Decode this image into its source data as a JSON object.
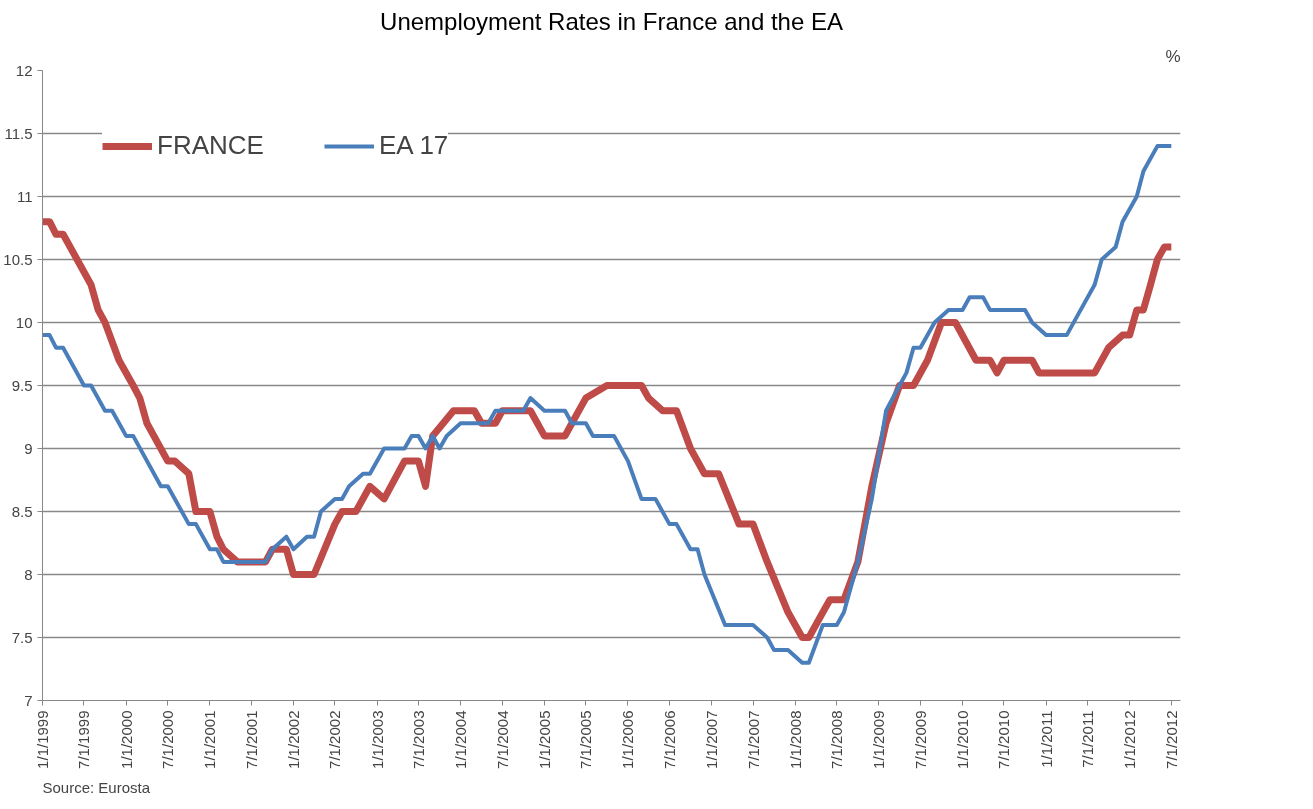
{
  "chart_data": {
    "type": "line",
    "title": "Unemployment Rates in France and the EA",
    "ylabel": "%",
    "annotations": [
      "Source: Eurosta"
    ],
    "xlim": [
      "1999-01-01",
      "2012-08-10"
    ],
    "ylim": [
      7,
      12
    ],
    "yticks": [
      7,
      7.5,
      8,
      8.5,
      9,
      9.5,
      10,
      10.5,
      11,
      11.5,
      12
    ],
    "xticks": [
      {
        "value": "1999-01-01",
        "label": "1/1/1999"
      },
      {
        "value": "1999-07-01",
        "label": "7/1/1999"
      },
      {
        "value": "2000-01-01",
        "label": "1/1/2000"
      },
      {
        "value": "2000-07-01",
        "label": "7/1/2000"
      },
      {
        "value": "2001-01-01",
        "label": "1/1/2001"
      },
      {
        "value": "2001-07-01",
        "label": "7/1/2001"
      },
      {
        "value": "2002-01-01",
        "label": "1/1/2002"
      },
      {
        "value": "2002-07-01",
        "label": "7/1/2002"
      },
      {
        "value": "2003-01-01",
        "label": "1/1/2003"
      },
      {
        "value": "2003-07-01",
        "label": "7/1/2003"
      },
      {
        "value": "2004-01-01",
        "label": "1/1/2004"
      },
      {
        "value": "2004-07-01",
        "label": "7/1/2004"
      },
      {
        "value": "2005-01-01",
        "label": "1/1/2005"
      },
      {
        "value": "2005-07-01",
        "label": "7/1/2005"
      },
      {
        "value": "2006-01-01",
        "label": "1/1/2006"
      },
      {
        "value": "2006-07-01",
        "label": "7/1/2006"
      },
      {
        "value": "2007-01-01",
        "label": "1/1/2007"
      },
      {
        "value": "2007-07-01",
        "label": "7/1/2007"
      },
      {
        "value": "2008-01-01",
        "label": "1/1/2008"
      },
      {
        "value": "2008-07-01",
        "label": "7/1/2008"
      },
      {
        "value": "2009-01-01",
        "label": "1/1/2009"
      },
      {
        "value": "2009-07-01",
        "label": "7/1/2009"
      },
      {
        "value": "2010-01-01",
        "label": "1/1/2010"
      },
      {
        "value": "2010-07-01",
        "label": "7/1/2010"
      },
      {
        "value": "2011-01-01",
        "label": "1/1/2011"
      },
      {
        "value": "2011-07-01",
        "label": "7/1/2011"
      },
      {
        "value": "2012-01-01",
        "label": "1/1/2012"
      },
      {
        "value": "2012-07-01",
        "label": "7/1/2012"
      }
    ],
    "grid": "y",
    "legend": "top left",
    "marker": "none",
    "line_style": "solid",
    "series": [
      {
        "name": "FRANCE",
        "color": "#be4b48",
        "x": [
          "1999-01",
          "1999-02",
          "1999-03",
          "1999-04",
          "1999-06",
          "1999-08",
          "1999-09",
          "1999-10",
          "1999-12",
          "2000-02",
          "2000-03",
          "2000-04",
          "2000-07",
          "2000-08",
          "2000-10",
          "2000-11",
          "2001-01",
          "2001-02",
          "2001-03",
          "2001-05",
          "2001-09",
          "2001-10",
          "2001-12",
          "2002-01",
          "2002-04",
          "2002-07",
          "2002-08",
          "2002-10",
          "2002-12",
          "2003-02",
          "2003-05",
          "2003-07",
          "2003-08",
          "2003-09",
          "2003-12",
          "2004-03",
          "2004-04",
          "2004-06",
          "2004-07",
          "2004-11",
          "2005-01",
          "2005-04",
          "2005-05",
          "2005-07",
          "2005-10",
          "2006-03",
          "2006-04",
          "2006-06",
          "2006-08",
          "2006-10",
          "2006-12",
          "2007-02",
          "2007-05",
          "2007-07",
          "2007-09",
          "2007-12",
          "2008-02",
          "2008-03",
          "2008-05",
          "2008-06",
          "2008-08",
          "2008-10",
          "2008-12",
          "2009-02",
          "2009-04",
          "2009-06",
          "2009-08",
          "2009-10",
          "2009-12",
          "2010-03",
          "2010-05",
          "2010-06",
          "2010-07",
          "2010-11",
          "2010-12",
          "2011-08",
          "2011-10",
          "2011-12",
          "2012-01",
          "2012-02",
          "2012-03",
          "2012-04",
          "2012-05",
          "2012-06",
          "2012-07"
        ],
        "values": [
          10.8,
          10.8,
          10.7,
          10.7,
          10.5,
          10.3,
          10.1,
          10.0,
          9.7,
          9.5,
          9.4,
          9.2,
          8.9,
          8.9,
          8.8,
          8.5,
          8.5,
          8.3,
          8.2,
          8.1,
          8.1,
          8.2,
          8.2,
          8.0,
          8.0,
          8.4,
          8.5,
          8.5,
          8.7,
          8.6,
          8.9,
          8.9,
          8.7,
          9.1,
          9.3,
          9.3,
          9.2,
          9.2,
          9.3,
          9.3,
          9.1,
          9.1,
          9.2,
          9.4,
          9.5,
          9.5,
          9.4,
          9.3,
          9.3,
          9.0,
          8.8,
          8.8,
          8.4,
          8.4,
          8.1,
          7.7,
          7.5,
          7.5,
          7.7,
          7.8,
          7.8,
          8.1,
          8.7,
          9.2,
          9.5,
          9.5,
          9.7,
          10.0,
          10.0,
          9.7,
          9.7,
          9.6,
          9.7,
          9.7,
          9.6,
          9.6,
          9.8,
          9.9,
          9.9,
          10.1,
          10.1,
          10.3,
          10.5,
          10.6,
          10.6
        ]
      },
      {
        "name": "EA 17",
        "color": "#4a7ebb",
        "x": [
          "1999-01",
          "1999-02",
          "1999-03",
          "1999-04",
          "1999-07",
          "1999-08",
          "1999-10",
          "1999-11",
          "2000-01",
          "2000-02",
          "2000-06",
          "2000-07",
          "2000-10",
          "2000-11",
          "2001-01",
          "2001-02",
          "2001-03",
          "2001-09",
          "2001-10",
          "2001-12",
          "2002-01",
          "2002-03",
          "2002-04",
          "2002-05",
          "2002-07",
          "2002-08",
          "2002-09",
          "2002-11",
          "2002-12",
          "2003-02",
          "2003-05",
          "2003-06",
          "2003-07",
          "2003-08",
          "2003-09",
          "2003-10",
          "2003-11",
          "2004-01",
          "2004-05",
          "2004-06",
          "2004-10",
          "2004-11",
          "2005-01",
          "2005-04",
          "2005-05",
          "2005-07",
          "2005-08",
          "2005-11",
          "2006-01",
          "2006-03",
          "2006-05",
          "2006-07",
          "2006-08",
          "2006-10",
          "2006-11",
          "2006-12",
          "2007-03",
          "2007-07",
          "2007-09",
          "2007-10",
          "2007-12",
          "2008-02",
          "2008-03",
          "2008-05",
          "2008-07",
          "2008-08",
          "2008-10",
          "2008-12",
          "2009-02",
          "2009-04",
          "2009-05",
          "2009-06",
          "2009-07",
          "2009-09",
          "2009-11",
          "2010-01",
          "2010-02",
          "2010-04",
          "2010-05",
          "2010-10",
          "2010-11",
          "2011-01",
          "2011-04",
          "2011-06",
          "2011-08",
          "2011-09",
          "2011-11",
          "2011-12",
          "2012-02",
          "2012-03",
          "2012-05",
          "2012-07"
        ],
        "values": [
          9.9,
          9.9,
          9.8,
          9.8,
          9.5,
          9.5,
          9.3,
          9.3,
          9.1,
          9.1,
          8.7,
          8.7,
          8.4,
          8.4,
          8.2,
          8.2,
          8.1,
          8.1,
          8.2,
          8.3,
          8.2,
          8.3,
          8.3,
          8.5,
          8.6,
          8.6,
          8.7,
          8.8,
          8.8,
          9.0,
          9.0,
          9.1,
          9.1,
          9.0,
          9.1,
          9.0,
          9.1,
          9.2,
          9.2,
          9.3,
          9.3,
          9.4,
          9.3,
          9.3,
          9.2,
          9.2,
          9.1,
          9.1,
          8.9,
          8.6,
          8.6,
          8.4,
          8.4,
          8.2,
          8.2,
          8.0,
          7.6,
          7.6,
          7.5,
          7.4,
          7.4,
          7.3,
          7.3,
          7.6,
          7.6,
          7.7,
          8.1,
          8.6,
          9.3,
          9.5,
          9.6,
          9.8,
          9.8,
          10.0,
          10.1,
          10.1,
          10.2,
          10.2,
          10.1,
          10.1,
          10.0,
          9.9,
          9.9,
          10.1,
          10.3,
          10.5,
          10.6,
          10.8,
          11.0,
          11.2,
          11.4,
          11.4
        ]
      }
    ]
  }
}
